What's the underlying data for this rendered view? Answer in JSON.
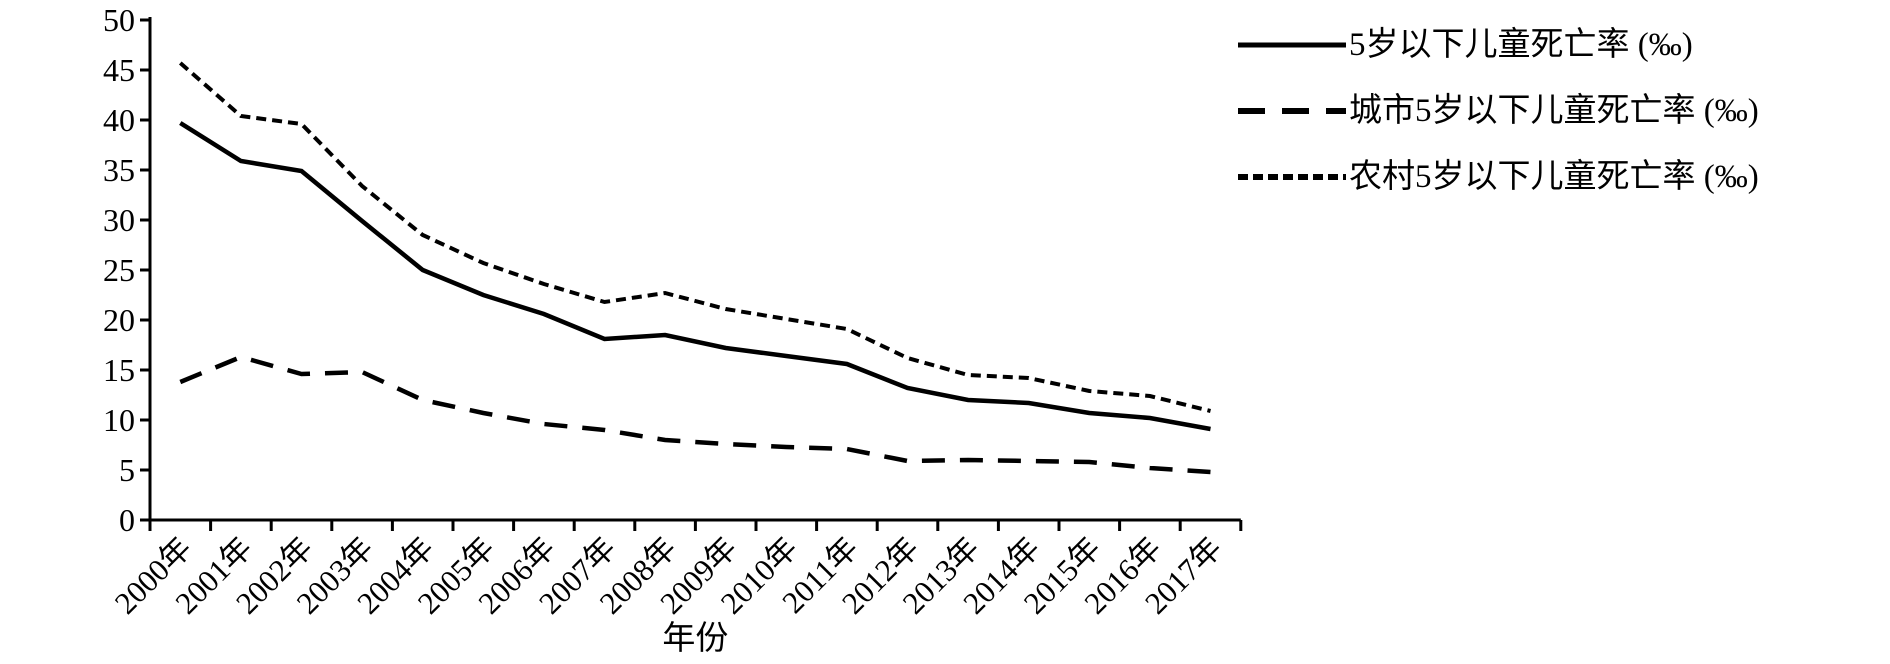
{
  "chart_data": {
    "type": "line",
    "title": "",
    "xlabel": "年份",
    "ylabel": "",
    "unit": "‰",
    "ylim": [
      0,
      50
    ],
    "yticks": [
      0,
      5,
      10,
      15,
      20,
      25,
      30,
      35,
      40,
      45,
      50
    ],
    "grid": false,
    "legend_position": "right",
    "axis_color": "#000000",
    "line_color": "#000000",
    "categories": [
      "2000年",
      "2001年",
      "2002年",
      "2003年",
      "2004年",
      "2005年",
      "2006年",
      "2007年",
      "2008年",
      "2009年",
      "2010年",
      "2011年",
      "2012年",
      "2013年",
      "2014年",
      "2015年",
      "2016年",
      "2017年"
    ],
    "series": [
      {
        "name": "5岁以下儿童死亡率 (‰)",
        "line_style": "solid",
        "values": [
          39.7,
          35.9,
          34.9,
          29.9,
          25.0,
          22.5,
          20.6,
          18.1,
          18.5,
          17.2,
          16.4,
          15.6,
          13.2,
          12.0,
          11.7,
          10.7,
          10.2,
          9.1
        ]
      },
      {
        "name": "城市5岁以下儿童死亡率 (‰)",
        "line_style": "long-dash",
        "values": [
          13.8,
          16.3,
          14.6,
          14.8,
          12.0,
          10.7,
          9.6,
          9.0,
          8.0,
          7.6,
          7.3,
          7.1,
          5.9,
          6.0,
          5.9,
          5.8,
          5.2,
          4.8
        ]
      },
      {
        "name": "农村5岁以下儿童死亡率 (‰)",
        "line_style": "short-dash",
        "values": [
          45.7,
          40.4,
          39.6,
          33.4,
          28.5,
          25.7,
          23.6,
          21.8,
          22.7,
          21.1,
          20.1,
          19.1,
          16.2,
          14.5,
          14.2,
          12.9,
          12.4,
          10.9
        ]
      }
    ]
  }
}
